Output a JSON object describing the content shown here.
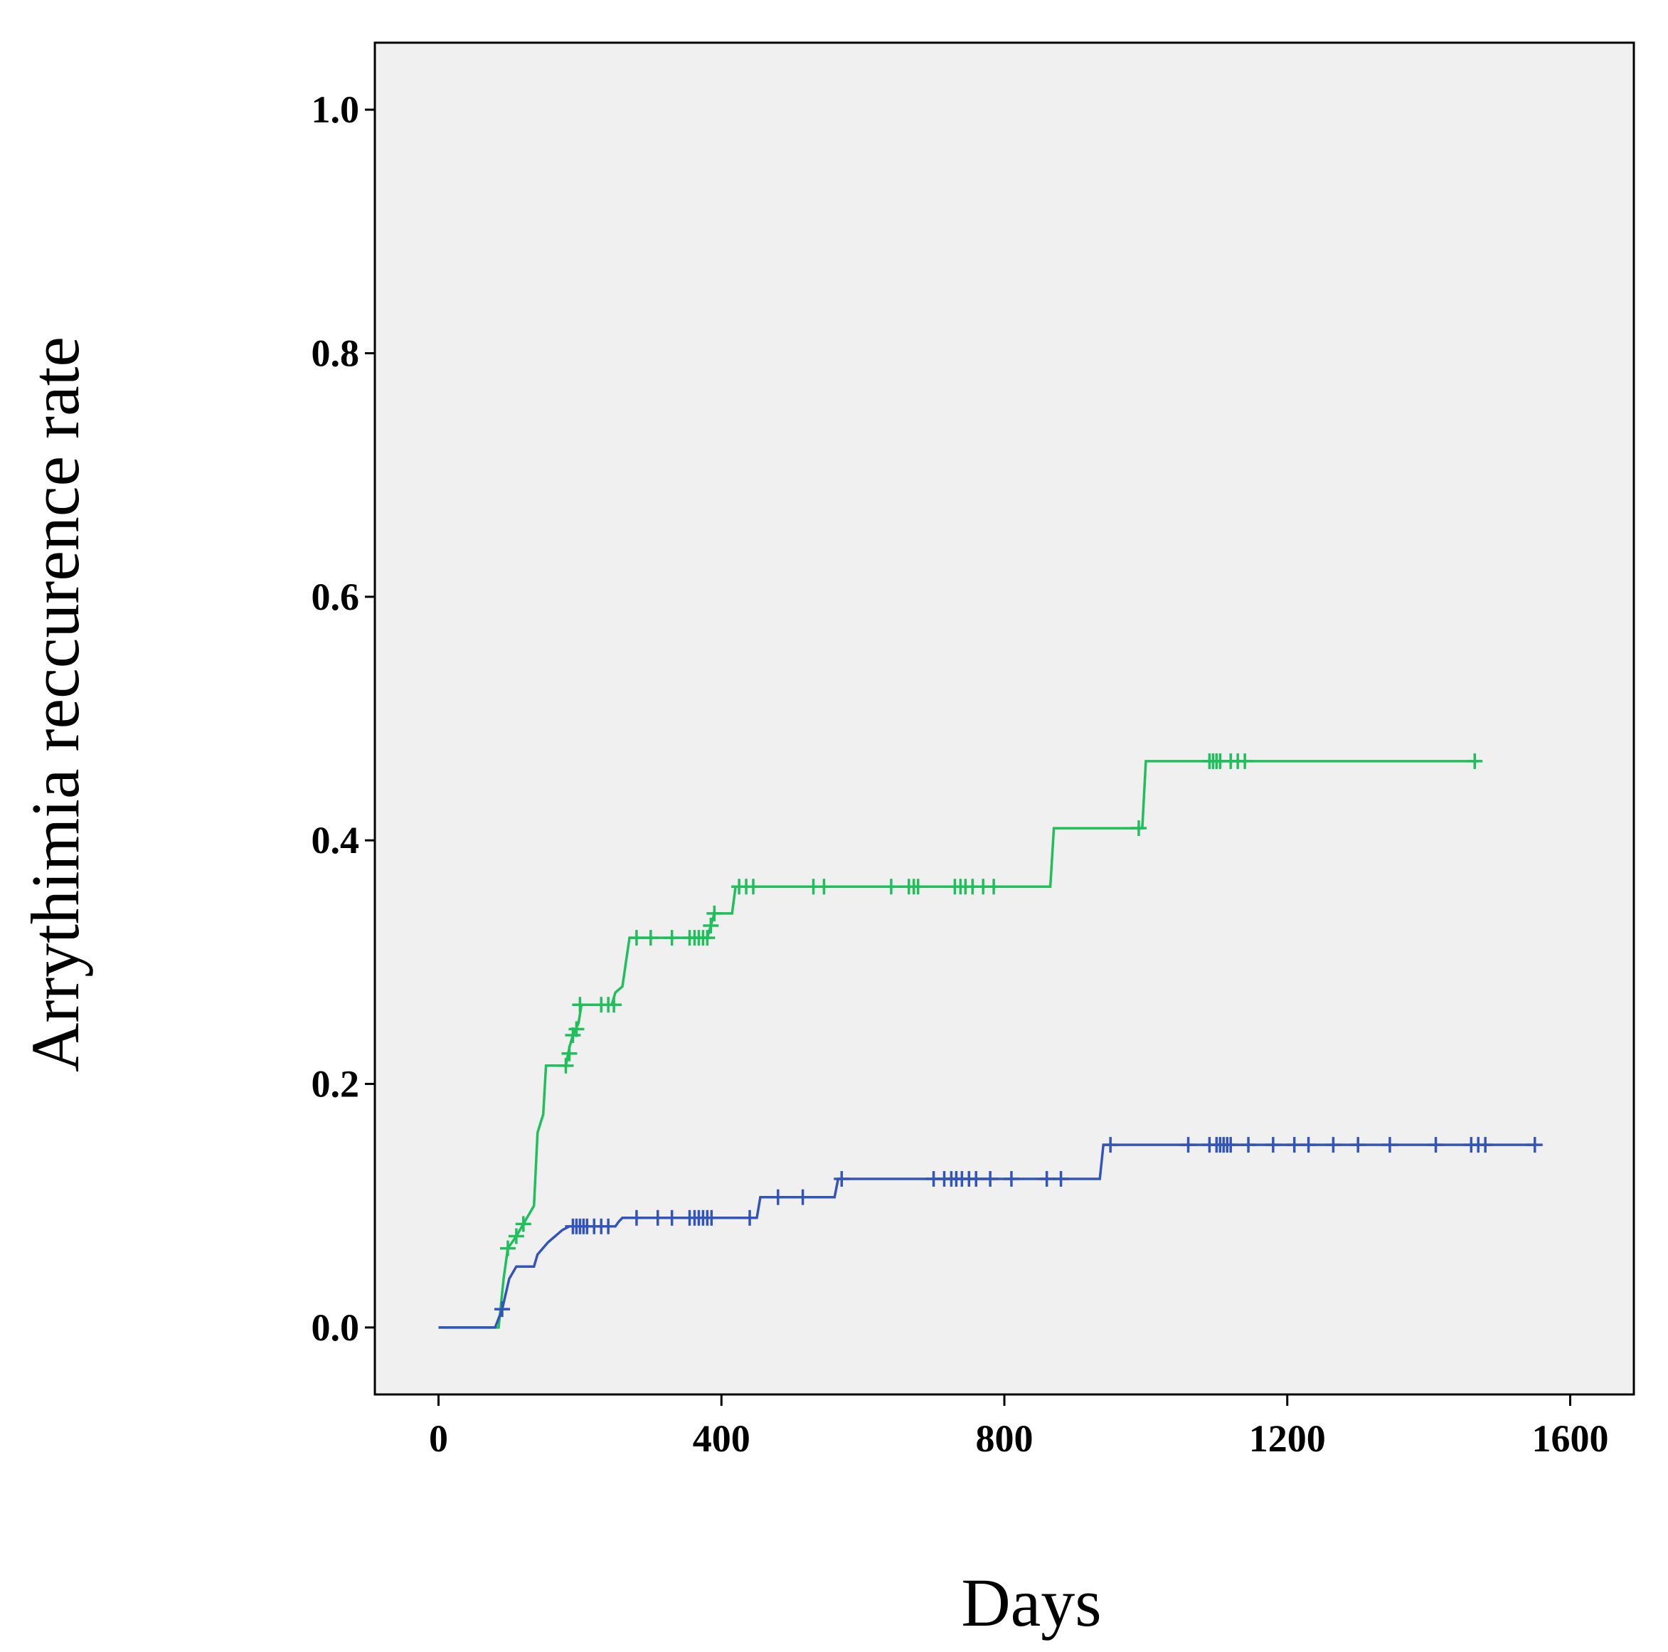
{
  "chart_data": {
    "type": "line",
    "subtype": "kaplan-meier-step",
    "title": "",
    "xlabel": "Days",
    "ylabel": "Arrythimia reccurence rate",
    "xlim": [
      -90,
      1690
    ],
    "ylim": [
      -0.055,
      1.055
    ],
    "xticks": [
      0,
      400,
      800,
      1200,
      1600
    ],
    "xtick_labels": [
      "0",
      "400",
      "800",
      "1200",
      "1600"
    ],
    "yticks": [
      0.0,
      0.2,
      0.4,
      0.6,
      0.8,
      1.0
    ],
    "ytick_labels": [
      "0.0",
      "0.2",
      "0.4",
      "0.6",
      "0.8",
      "1.0"
    ],
    "background": "#f0f0f0",
    "grid": false,
    "legend": "none",
    "series": [
      {
        "name": "green group",
        "color": "#1fbf5c",
        "points": [
          [
            0,
            0
          ],
          [
            85,
            0
          ],
          [
            92,
            0.04
          ],
          [
            98,
            0.065
          ],
          [
            110,
            0.075
          ],
          [
            120,
            0.085
          ],
          [
            135,
            0.1
          ],
          [
            140,
            0.16
          ],
          [
            148,
            0.175
          ],
          [
            152,
            0.215
          ],
          [
            180,
            0.215
          ],
          [
            185,
            0.23
          ],
          [
            190,
            0.24
          ],
          [
            198,
            0.25
          ],
          [
            202,
            0.265
          ],
          [
            245,
            0.265
          ],
          [
            250,
            0.275
          ],
          [
            260,
            0.28
          ],
          [
            265,
            0.3
          ],
          [
            270,
            0.32
          ],
          [
            380,
            0.32
          ],
          [
            385,
            0.33
          ],
          [
            390,
            0.34
          ],
          [
            415,
            0.34
          ],
          [
            420,
            0.362
          ],
          [
            865,
            0.362
          ],
          [
            870,
            0.41
          ],
          [
            995,
            0.41
          ],
          [
            1000,
            0.465
          ],
          [
            1470,
            0.465
          ]
        ],
        "censored": [
          [
            98,
            0.065
          ],
          [
            110,
            0.075
          ],
          [
            120,
            0.085
          ],
          [
            180,
            0.215
          ],
          [
            185,
            0.225
          ],
          [
            190,
            0.24
          ],
          [
            195,
            0.245
          ],
          [
            200,
            0.265
          ],
          [
            230,
            0.265
          ],
          [
            240,
            0.265
          ],
          [
            248,
            0.265
          ],
          [
            280,
            0.32
          ],
          [
            300,
            0.32
          ],
          [
            330,
            0.32
          ],
          [
            355,
            0.32
          ],
          [
            362,
            0.32
          ],
          [
            368,
            0.32
          ],
          [
            374,
            0.32
          ],
          [
            380,
            0.32
          ],
          [
            385,
            0.33
          ],
          [
            390,
            0.34
          ],
          [
            425,
            0.362
          ],
          [
            435,
            0.362
          ],
          [
            445,
            0.362
          ],
          [
            530,
            0.362
          ],
          [
            545,
            0.362
          ],
          [
            640,
            0.362
          ],
          [
            665,
            0.362
          ],
          [
            672,
            0.362
          ],
          [
            678,
            0.362
          ],
          [
            730,
            0.362
          ],
          [
            738,
            0.362
          ],
          [
            745,
            0.362
          ],
          [
            755,
            0.362
          ],
          [
            770,
            0.362
          ],
          [
            785,
            0.362
          ],
          [
            990,
            0.41
          ],
          [
            1090,
            0.465
          ],
          [
            1095,
            0.465
          ],
          [
            1100,
            0.465
          ],
          [
            1105,
            0.465
          ],
          [
            1120,
            0.465
          ],
          [
            1130,
            0.465
          ],
          [
            1140,
            0.465
          ],
          [
            1465,
            0.465
          ]
        ]
      },
      {
        "name": "blue group",
        "color": "#3355bb",
        "points": [
          [
            0,
            0
          ],
          [
            80,
            0
          ],
          [
            90,
            0.015
          ],
          [
            100,
            0.04
          ],
          [
            110,
            0.05
          ],
          [
            135,
            0.05
          ],
          [
            140,
            0.06
          ],
          [
            155,
            0.07
          ],
          [
            165,
            0.075
          ],
          [
            175,
            0.08
          ],
          [
            185,
            0.083
          ],
          [
            250,
            0.083
          ],
          [
            255,
            0.087
          ],
          [
            260,
            0.09
          ],
          [
            450,
            0.09
          ],
          [
            455,
            0.107
          ],
          [
            560,
            0.107
          ],
          [
            565,
            0.122
          ],
          [
            935,
            0.122
          ],
          [
            940,
            0.15
          ],
          [
            1550,
            0.15
          ]
        ],
        "censored": [
          [
            90,
            0.015
          ],
          [
            190,
            0.083
          ],
          [
            195,
            0.083
          ],
          [
            200,
            0.083
          ],
          [
            205,
            0.083
          ],
          [
            210,
            0.083
          ],
          [
            220,
            0.083
          ],
          [
            230,
            0.083
          ],
          [
            240,
            0.083
          ],
          [
            280,
            0.09
          ],
          [
            310,
            0.09
          ],
          [
            330,
            0.09
          ],
          [
            355,
            0.09
          ],
          [
            362,
            0.09
          ],
          [
            368,
            0.09
          ],
          [
            374,
            0.09
          ],
          [
            380,
            0.09
          ],
          [
            386,
            0.09
          ],
          [
            440,
            0.09
          ],
          [
            480,
            0.107
          ],
          [
            515,
            0.107
          ],
          [
            570,
            0.122
          ],
          [
            700,
            0.122
          ],
          [
            715,
            0.122
          ],
          [
            725,
            0.122
          ],
          [
            732,
            0.122
          ],
          [
            740,
            0.122
          ],
          [
            750,
            0.122
          ],
          [
            760,
            0.122
          ],
          [
            780,
            0.122
          ],
          [
            810,
            0.122
          ],
          [
            860,
            0.122
          ],
          [
            880,
            0.122
          ],
          [
            950,
            0.15
          ],
          [
            1060,
            0.15
          ],
          [
            1090,
            0.15
          ],
          [
            1100,
            0.15
          ],
          [
            1105,
            0.15
          ],
          [
            1110,
            0.15
          ],
          [
            1115,
            0.15
          ],
          [
            1120,
            0.15
          ],
          [
            1145,
            0.15
          ],
          [
            1180,
            0.15
          ],
          [
            1210,
            0.15
          ],
          [
            1230,
            0.15
          ],
          [
            1265,
            0.15
          ],
          [
            1300,
            0.15
          ],
          [
            1345,
            0.15
          ],
          [
            1410,
            0.15
          ],
          [
            1460,
            0.15
          ],
          [
            1470,
            0.15
          ],
          [
            1480,
            0.15
          ],
          [
            1550,
            0.15
          ]
        ]
      }
    ]
  }
}
